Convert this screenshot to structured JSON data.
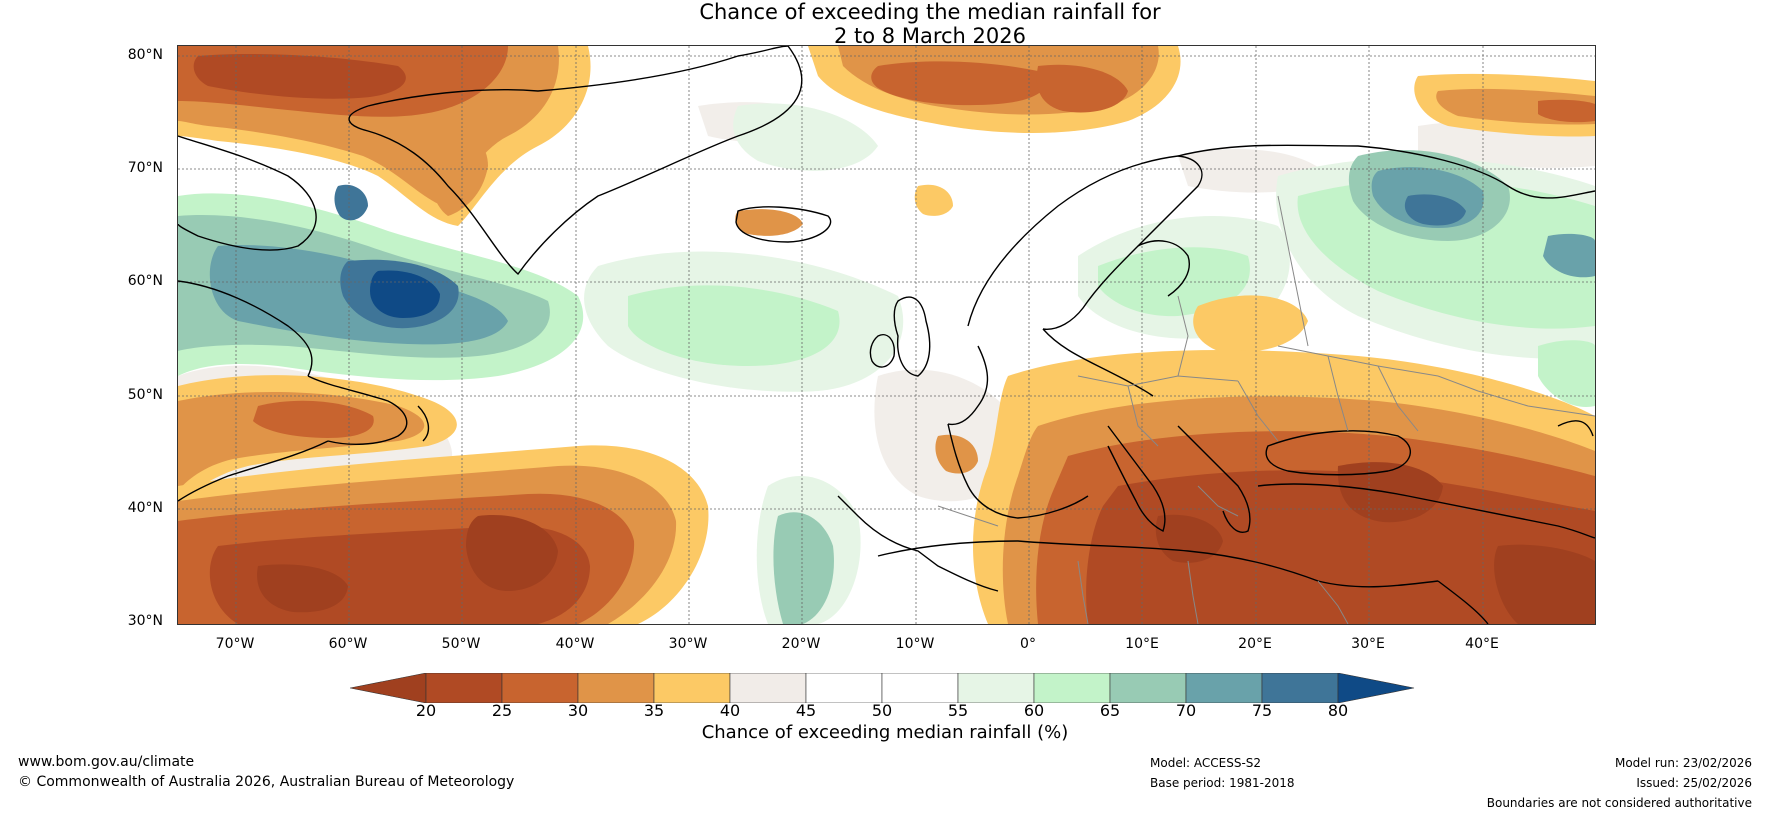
{
  "title": {
    "line1": "Chance of exceeding the median rainfall for",
    "line2": "2 to 8 March 2026"
  },
  "map": {
    "lat_labels": [
      "80°N",
      "70°N",
      "60°N",
      "50°N",
      "40°N",
      "30°N"
    ],
    "lon_labels": [
      "70°W",
      "60°W",
      "50°W",
      "40°W",
      "30°W",
      "20°W",
      "10°W",
      "0°",
      "10°E",
      "20°E",
      "30°E",
      "40°E"
    ],
    "colors": {
      "c15_20": "#a0401f",
      "c20_25": "#b04a24",
      "c25_30": "#c8642f",
      "c30_35": "#e09448",
      "c35_40": "#fcc965",
      "c40_45": "#f1ece8",
      "c45_50": "#ffffff",
      "c50_55": "#ffffff",
      "c55_60": "#e6f5e6",
      "c60_65": "#c3f3c9",
      "c65_70": "#98cbb4",
      "c70_75": "#69a2aa",
      "c75_80": "#3f7598",
      "c80_85": "#0f4a86"
    }
  },
  "colorbar": {
    "ticks": [
      "20",
      "25",
      "30",
      "35",
      "40",
      "45",
      "50",
      "55",
      "60",
      "65",
      "70",
      "75",
      "80"
    ],
    "label": "Chance of exceeding median rainfall (%)"
  },
  "footer": {
    "website": "www.bom.gov.au/climate",
    "copyright": "© Commonwealth of Australia 2026, Australian Bureau of Meteorology",
    "model": "Model: ACCESS-S2",
    "base_period": "Base period: 1981-2018",
    "model_run": "Model run: 23/02/2026",
    "issued": "Issued: 25/02/2026",
    "disclaimer": "Boundaries are not considered authoritative"
  }
}
